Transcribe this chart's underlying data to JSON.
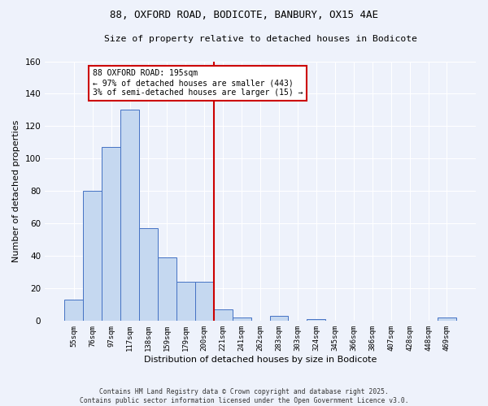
{
  "title1": "88, OXFORD ROAD, BODICOTE, BANBURY, OX15 4AE",
  "title2": "Size of property relative to detached houses in Bodicote",
  "xlabel": "Distribution of detached houses by size in Bodicote",
  "ylabel": "Number of detached properties",
  "categories": [
    "55sqm",
    "76sqm",
    "97sqm",
    "117sqm",
    "138sqm",
    "159sqm",
    "179sqm",
    "200sqm",
    "221sqm",
    "241sqm",
    "262sqm",
    "283sqm",
    "303sqm",
    "324sqm",
    "345sqm",
    "366sqm",
    "386sqm",
    "407sqm",
    "428sqm",
    "448sqm",
    "469sqm"
  ],
  "values": [
    13,
    80,
    107,
    130,
    57,
    39,
    24,
    24,
    7,
    2,
    0,
    3,
    0,
    1,
    0,
    0,
    0,
    0,
    0,
    0,
    2
  ],
  "bar_color": "#c5d8f0",
  "bar_edge_color": "#4472c4",
  "vline_x_index": 7,
  "vline_color": "#cc0000",
  "annotation_text": "88 OXFORD ROAD: 195sqm\n← 97% of detached houses are smaller (443)\n3% of semi-detached houses are larger (15) →",
  "annotation_box_color": "#cc0000",
  "ylim": [
    0,
    160
  ],
  "yticks": [
    0,
    20,
    40,
    60,
    80,
    100,
    120,
    140,
    160
  ],
  "background_color": "#eef2fb",
  "grid_color": "#ffffff",
  "footer1": "Contains HM Land Registry data © Crown copyright and database right 2025.",
  "footer2": "Contains public sector information licensed under the Open Government Licence v3.0."
}
